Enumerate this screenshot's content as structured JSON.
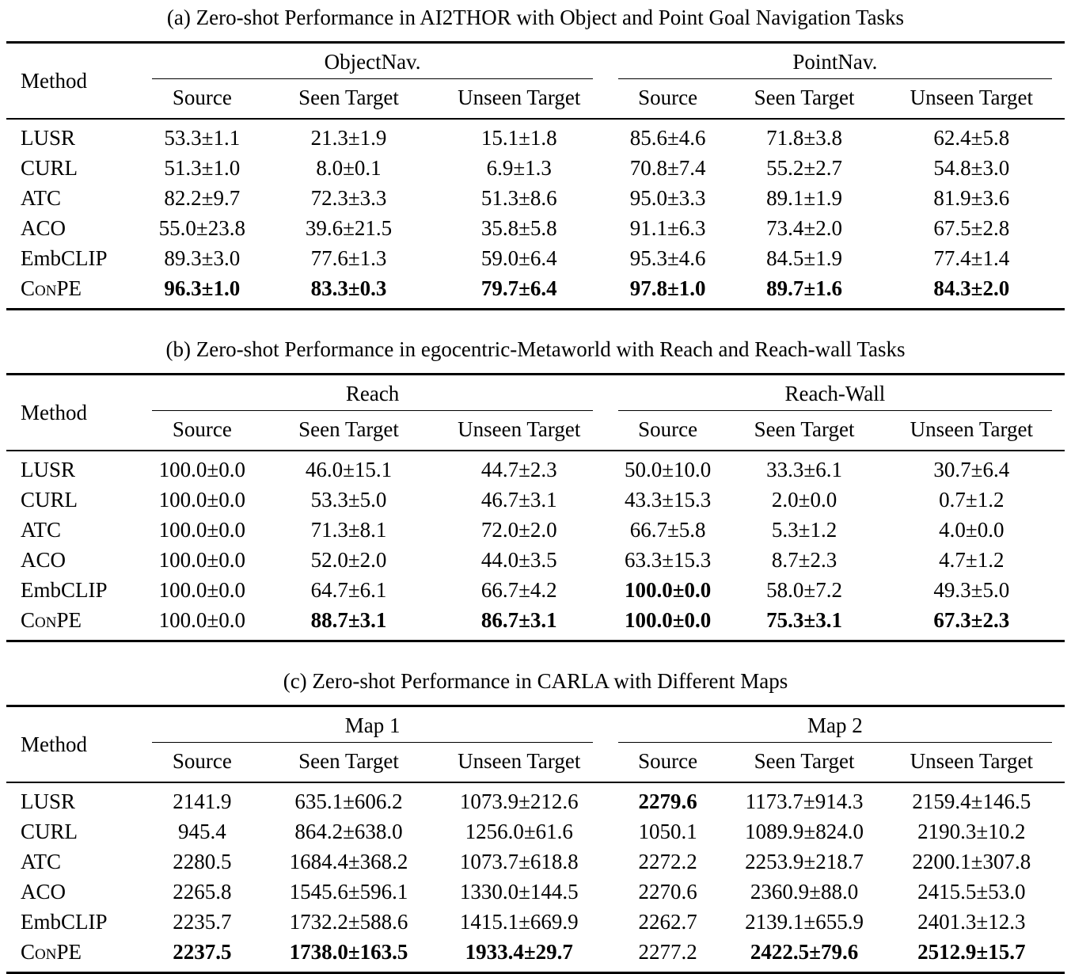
{
  "page": {
    "background_color": "#ffffff",
    "text_color": "#000000",
    "rule_color": "#000000"
  },
  "tables": [
    {
      "caption": "(a) Zero-shot Performance in AI2THOR with Object and Point Goal Navigation Tasks",
      "method_header": "Method",
      "groups": [
        {
          "label": "ObjectNav.",
          "subheaders": [
            "Source",
            "Seen Target",
            "Unseen Target"
          ]
        },
        {
          "label": "PointNav.",
          "subheaders": [
            "Source",
            "Seen Target",
            "Unseen Target"
          ]
        }
      ],
      "rows": [
        {
          "method": "LUSR",
          "smallcaps": false,
          "cells": [
            "53.3±1.1",
            "21.3±1.9",
            "15.1±1.8",
            "85.6±4.6",
            "71.8±3.8",
            "62.4±5.8"
          ],
          "bold": [
            false,
            false,
            false,
            false,
            false,
            false
          ]
        },
        {
          "method": "CURL",
          "smallcaps": false,
          "cells": [
            "51.3±1.0",
            "8.0±0.1",
            "6.9±1.3",
            "70.8±7.4",
            "55.2±2.7",
            "54.8±3.0"
          ],
          "bold": [
            false,
            false,
            false,
            false,
            false,
            false
          ]
        },
        {
          "method": "ATC",
          "smallcaps": false,
          "cells": [
            "82.2±9.7",
            "72.3±3.3",
            "51.3±8.6",
            "95.0±3.3",
            "89.1±1.9",
            "81.9±3.6"
          ],
          "bold": [
            false,
            false,
            false,
            false,
            false,
            false
          ]
        },
        {
          "method": "ACO",
          "smallcaps": false,
          "cells": [
            "55.0±23.8",
            "39.6±21.5",
            "35.8±5.8",
            "91.1±6.3",
            "73.4±2.0",
            "67.5±2.8"
          ],
          "bold": [
            false,
            false,
            false,
            false,
            false,
            false
          ]
        },
        {
          "method": "EmbCLIP",
          "smallcaps": false,
          "cells": [
            "89.3±3.0",
            "77.6±1.3",
            "59.0±6.4",
            "95.3±4.6",
            "84.5±1.9",
            "77.4±1.4"
          ],
          "bold": [
            false,
            false,
            false,
            false,
            false,
            false
          ]
        },
        {
          "method": "ConPE",
          "smallcaps": true,
          "cells": [
            "96.3±1.0",
            "83.3±0.3",
            "79.7±6.4",
            "97.8±1.0",
            "89.7±1.6",
            "84.3±2.0"
          ],
          "bold": [
            true,
            true,
            true,
            true,
            true,
            true
          ]
        }
      ]
    },
    {
      "caption": "(b) Zero-shot Performance in egocentric-Metaworld with Reach and Reach-wall Tasks",
      "method_header": "Method",
      "groups": [
        {
          "label": "Reach",
          "subheaders": [
            "Source",
            "Seen Target",
            "Unseen Target"
          ]
        },
        {
          "label": "Reach-Wall",
          "subheaders": [
            "Source",
            "Seen Target",
            "Unseen Target"
          ]
        }
      ],
      "rows": [
        {
          "method": "LUSR",
          "smallcaps": false,
          "cells": [
            "100.0±0.0",
            "46.0±15.1",
            "44.7±2.3",
            "50.0±10.0",
            "33.3±6.1",
            "30.7±6.4"
          ],
          "bold": [
            false,
            false,
            false,
            false,
            false,
            false
          ]
        },
        {
          "method": "CURL",
          "smallcaps": false,
          "cells": [
            "100.0±0.0",
            "53.3±5.0",
            "46.7±3.1",
            "43.3±15.3",
            "2.0±0.0",
            "0.7±1.2"
          ],
          "bold": [
            false,
            false,
            false,
            false,
            false,
            false
          ]
        },
        {
          "method": "ATC",
          "smallcaps": false,
          "cells": [
            "100.0±0.0",
            "71.3±8.1",
            "72.0±2.0",
            "66.7±5.8",
            "5.3±1.2",
            "4.0±0.0"
          ],
          "bold": [
            false,
            false,
            false,
            false,
            false,
            false
          ]
        },
        {
          "method": "ACO",
          "smallcaps": false,
          "cells": [
            "100.0±0.0",
            "52.0±2.0",
            "44.0±3.5",
            "63.3±15.3",
            "8.7±2.3",
            "4.7±1.2"
          ],
          "bold": [
            false,
            false,
            false,
            false,
            false,
            false
          ]
        },
        {
          "method": "EmbCLIP",
          "smallcaps": false,
          "cells": [
            "100.0±0.0",
            "64.7±6.1",
            "66.7±4.2",
            "100.0±0.0",
            "58.0±7.2",
            "49.3±5.0"
          ],
          "bold": [
            false,
            false,
            false,
            true,
            false,
            false
          ]
        },
        {
          "method": "ConPE",
          "smallcaps": true,
          "cells": [
            "100.0±0.0",
            "88.7±3.1",
            "86.7±3.1",
            "100.0±0.0",
            "75.3±3.1",
            "67.3±2.3"
          ],
          "bold": [
            false,
            true,
            true,
            true,
            true,
            true
          ]
        }
      ]
    },
    {
      "caption": "(c) Zero-shot Performance in CARLA with Different Maps",
      "method_header": "Method",
      "groups": [
        {
          "label": "Map 1",
          "subheaders": [
            "Source",
            "Seen Target",
            "Unseen Target"
          ]
        },
        {
          "label": "Map 2",
          "subheaders": [
            "Source",
            "Seen Target",
            "Unseen Target"
          ]
        }
      ],
      "rows": [
        {
          "method": "LUSR",
          "smallcaps": false,
          "cells": [
            "2141.9",
            "635.1±606.2",
            "1073.9±212.6",
            "2279.6",
            "1173.7±914.3",
            "2159.4±146.5"
          ],
          "bold": [
            false,
            false,
            false,
            true,
            false,
            false
          ]
        },
        {
          "method": "CURL",
          "smallcaps": false,
          "cells": [
            "945.4",
            "864.2±638.0",
            "1256.0±61.6",
            "1050.1",
            "1089.9±824.0",
            "2190.3±10.2"
          ],
          "bold": [
            false,
            false,
            false,
            false,
            false,
            false
          ]
        },
        {
          "method": "ATC",
          "smallcaps": false,
          "cells": [
            "2280.5",
            "1684.4±368.2",
            "1073.7±618.8",
            "2272.2",
            "2253.9±218.7",
            "2200.1±307.8"
          ],
          "bold": [
            false,
            false,
            false,
            false,
            false,
            false
          ]
        },
        {
          "method": "ACO",
          "smallcaps": false,
          "cells": [
            "2265.8",
            "1545.6±596.1",
            "1330.0±144.5",
            "2270.6",
            "2360.9±88.0",
            "2415.5±53.0"
          ],
          "bold": [
            false,
            false,
            false,
            false,
            false,
            false
          ]
        },
        {
          "method": "EmbCLIP",
          "smallcaps": false,
          "cells": [
            "2235.7",
            "1732.2±588.6",
            "1415.1±669.9",
            "2262.7",
            "2139.1±655.9",
            "2401.3±12.3"
          ],
          "bold": [
            false,
            false,
            false,
            false,
            false,
            false
          ]
        },
        {
          "method": "ConPE",
          "smallcaps": true,
          "cells": [
            "2237.5",
            "1738.0±163.5",
            "1933.4±29.7",
            "2277.2",
            "2422.5±79.6",
            "2512.9±15.7"
          ],
          "bold": [
            true,
            true,
            true,
            false,
            true,
            true
          ]
        }
      ]
    }
  ]
}
